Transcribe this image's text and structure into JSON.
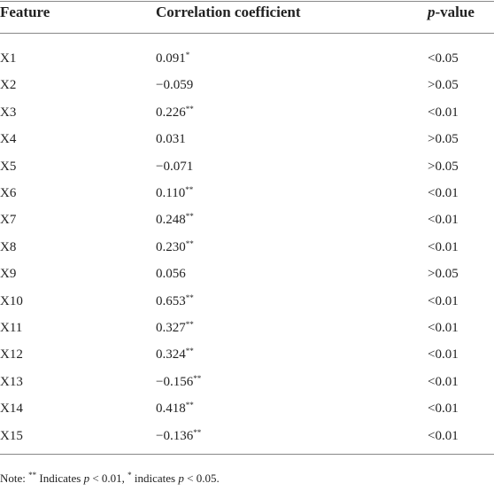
{
  "table": {
    "header": [
      "Feature",
      "Correlation coefficient",
      {
        "italic": "p",
        "rest": "-value"
      }
    ],
    "rows": [
      {
        "feature": "X1",
        "coefficient": "0.091",
        "marker": "*",
        "p": "<0.05"
      },
      {
        "feature": "X2",
        "coefficient": "−0.059",
        "p": ">0.05"
      },
      {
        "feature": "X3",
        "coefficient": "0.226",
        "marker": "**",
        "p": "<0.01"
      },
      {
        "feature": "X4",
        "coefficient": "0.031",
        "p": ">0.05"
      },
      {
        "feature": "X5",
        "coefficient": "−0.071",
        "p": ">0.05"
      },
      {
        "feature": "X6",
        "coefficient": "0.110",
        "marker": "**",
        "p": "<0.01"
      },
      {
        "feature": "X7",
        "coefficient": "0.248",
        "marker": "**",
        "p": "<0.01"
      },
      {
        "feature": "X8",
        "coefficient": "0.230",
        "marker": "**",
        "p": "<0.01"
      },
      {
        "feature": "X9",
        "coefficient": "0.056",
        "p": ">0.05"
      },
      {
        "feature": "X10",
        "coefficient": "0.653",
        "marker": "**",
        "p": "<0.01"
      },
      {
        "feature": "X11",
        "coefficient": "0.327",
        "marker": "**",
        "p": "<0.01"
      },
      {
        "feature": "X12",
        "coefficient": "0.324",
        "marker": "**",
        "p": "<0.01"
      },
      {
        "feature": "X13",
        "coefficient": "−0.156",
        "marker": "**",
        "p": "<0.01"
      },
      {
        "feature": "X14",
        "coefficient": "0.418",
        "marker": "**",
        "p": "<0.01"
      },
      {
        "feature": "X15",
        "coefficient": "−0.136",
        "marker": "**",
        "p": "<0.01"
      }
    ],
    "note": [
      "Note: ",
      "**",
      " Indicates ",
      "p",
      " < 0.01, ",
      "*",
      " indicates ",
      "p",
      " < 0.05."
    ]
  }
}
